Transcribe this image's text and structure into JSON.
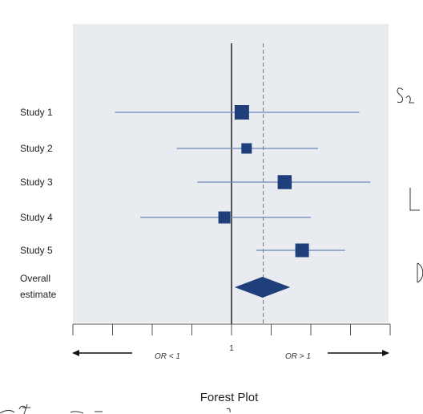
{
  "chart_data": {
    "type": "forest",
    "title": "Forest Plot",
    "x_tick_labels": [
      "1"
    ],
    "left_arrow_label": "OR < 1",
    "right_arrow_label": "OR > 1",
    "null_line": 1,
    "overall_line": 1.4,
    "xlim": [
      -1,
      3
    ],
    "ticks": [
      -1,
      -0.5,
      0,
      0.5,
      1,
      1.5,
      2,
      2.5,
      3
    ],
    "studies": [
      {
        "label": "Study 1",
        "estimate": 1.13,
        "lower": -0.47,
        "upper": 2.61,
        "weight": 1.0
      },
      {
        "label": "Study 2",
        "estimate": 1.19,
        "lower": 0.31,
        "upper": 2.09,
        "weight": 0.5
      },
      {
        "label": "Study 3",
        "estimate": 1.67,
        "lower": 0.57,
        "upper": 2.75,
        "weight": 0.95
      },
      {
        "label": "Study 4",
        "estimate": 0.91,
        "lower": -0.15,
        "upper": 2.0,
        "weight": 0.7
      },
      {
        "label": "Study 5",
        "estimate": 1.89,
        "lower": 1.31,
        "upper": 2.43,
        "weight": 0.9
      }
    ],
    "overall": {
      "label_lines": [
        "Overall",
        "estimate"
      ],
      "estimate": 1.39,
      "lower": 1.04,
      "upper": 1.74
    },
    "colors": {
      "panel": "#e8ecf1",
      "marker": "#1f3f7a",
      "ci_line": "#6a86b8",
      "null_line": "#222222",
      "overall_line": "#777777"
    }
  }
}
